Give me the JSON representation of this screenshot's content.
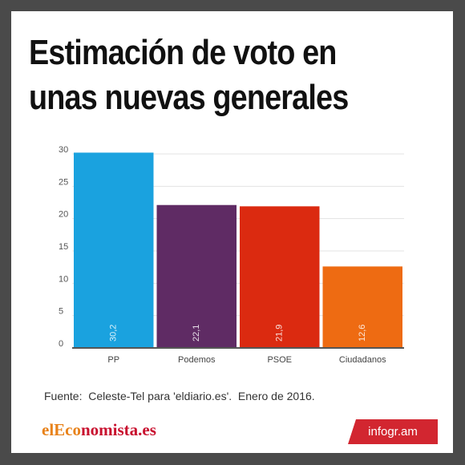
{
  "title_lines": [
    "Estimación de voto en",
    "unas nuevas generales"
  ],
  "chart_data": {
    "type": "bar",
    "categories": [
      "PP",
      "Podemos",
      "PSOE",
      "Ciudadanos"
    ],
    "values": [
      30.2,
      22.1,
      21.9,
      12.6
    ],
    "value_labels": [
      "30,2",
      "22,1",
      "21,9",
      "12,6"
    ],
    "colors": [
      "#1aa2df",
      "#5f2b64",
      "#db2a10",
      "#ee6b12"
    ],
    "ylim": [
      0,
      30
    ],
    "yticks": [
      0,
      5,
      10,
      15,
      20,
      25,
      30
    ],
    "grid": true,
    "title": "",
    "xlabel": "",
    "ylabel": ""
  },
  "source": "Fuente:  Celeste-Tel para 'eldiario.es'.  Enero de 2016.",
  "logo": {
    "part1": "elEco",
    "part2": "nomista.es"
  },
  "badge": "infogr.am"
}
